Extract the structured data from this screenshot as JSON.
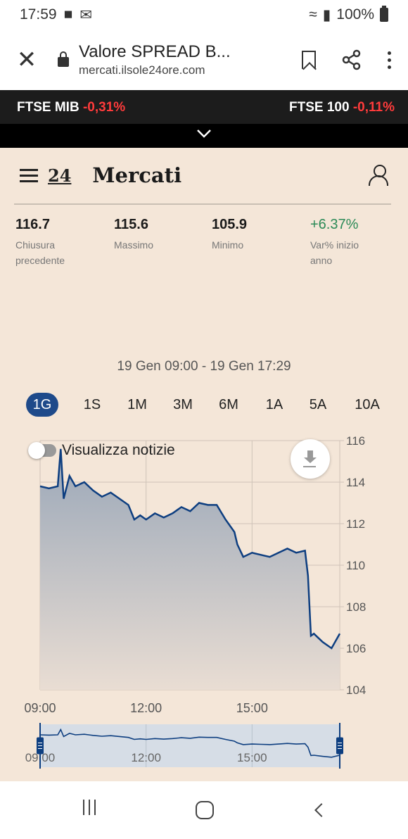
{
  "status_bar": {
    "time": "17:59",
    "battery": "100%"
  },
  "browser": {
    "title": "Valore SPREAD B...",
    "url": "mercati.ilsole24ore.com"
  },
  "ticker": [
    {
      "name": "FTSE MIB",
      "change": "-0,31%"
    },
    {
      "name": "FTSE 100",
      "change": "-0,11%"
    }
  ],
  "header": {
    "logo": "24",
    "title": "Mercati"
  },
  "stats": [
    {
      "value": "116.7",
      "label": "Chiusura precedente"
    },
    {
      "value": "115.6",
      "label": "Massimo"
    },
    {
      "value": "105.9",
      "label": "Minimo"
    },
    {
      "value": "+6.37%",
      "label": "Var% inizio anno"
    }
  ],
  "colors": {
    "positive": "#2b8a57",
    "negative": "#ff3b3b",
    "accent": "#1e4a8a",
    "background": "#f4e6d8"
  },
  "chart": {
    "range_label": "19 Gen 09:00 - 19 Gen 17:29",
    "periods": [
      "1G",
      "1S",
      "1M",
      "3M",
      "6M",
      "1A",
      "5A",
      "10A"
    ],
    "active_period": "1G",
    "news_toggle_label": "Visualizza notizie",
    "news_toggle_on": false
  },
  "chart_data": {
    "type": "area",
    "title": "",
    "xlabel": "",
    "ylabel": "",
    "x_ticks": [
      "09:00",
      "12:00",
      "15:00"
    ],
    "y_ticks": [
      104,
      106,
      108,
      110,
      112,
      114,
      116
    ],
    "ylim": [
      104,
      116
    ],
    "xlim_hours": [
      9.0,
      17.483
    ],
    "grid": true,
    "series": [
      {
        "x": [
          "09:00",
          "09:15",
          "09:30",
          "09:35",
          "09:40",
          "09:50",
          "10:00",
          "10:15",
          "10:30",
          "10:45",
          "11:00",
          "11:15",
          "11:30",
          "11:40",
          "11:50",
          "12:00",
          "12:15",
          "12:30",
          "12:45",
          "13:00",
          "13:15",
          "13:30",
          "13:45",
          "14:00",
          "14:15",
          "14:30",
          "14:35",
          "14:45",
          "15:00",
          "15:15",
          "15:30",
          "15:45",
          "16:00",
          "16:15",
          "16:30",
          "16:35",
          "16:40",
          "16:45",
          "17:00",
          "17:15",
          "17:29"
        ],
        "y": [
          113.8,
          113.7,
          113.8,
          115.6,
          113.2,
          114.3,
          113.8,
          114.0,
          113.6,
          113.3,
          113.5,
          113.2,
          112.9,
          112.2,
          112.4,
          112.2,
          112.5,
          112.3,
          112.5,
          112.8,
          112.6,
          113.0,
          112.9,
          112.9,
          112.2,
          111.6,
          111.0,
          110.4,
          110.6,
          110.5,
          110.4,
          110.6,
          110.8,
          110.6,
          110.7,
          109.5,
          106.6,
          106.7,
          106.3,
          106.0,
          106.7
        ]
      }
    ]
  },
  "navigator": {
    "x_ticks": [
      "09:00",
      "12:00",
      "15:00"
    ]
  }
}
